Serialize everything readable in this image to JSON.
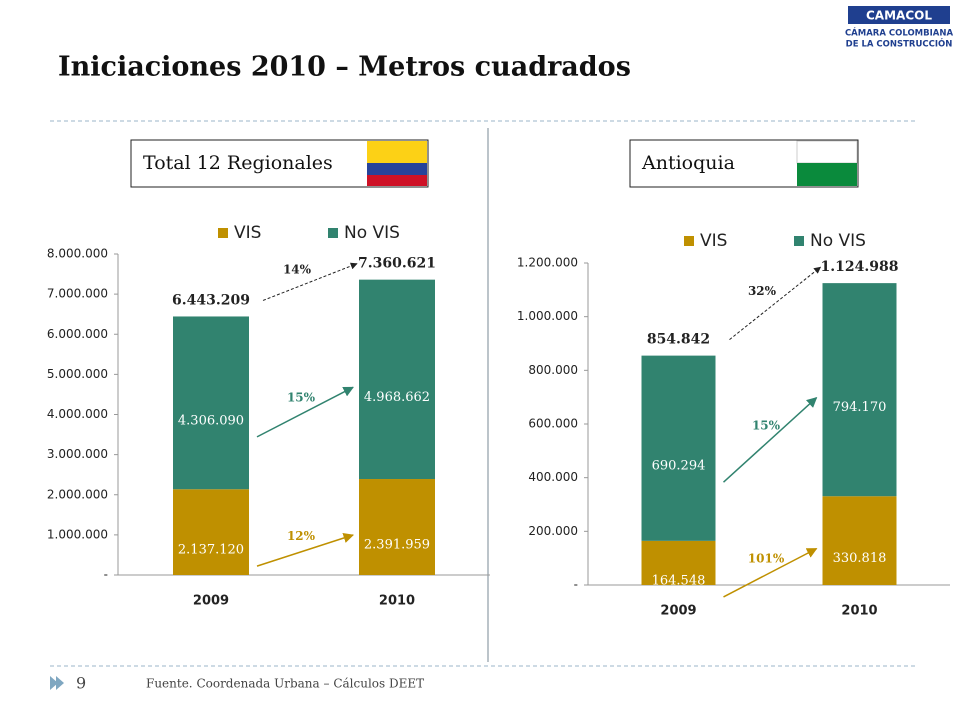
{
  "slide": {
    "title": "Iniciaciones 2010 – Metros cuadrados",
    "page": "9",
    "source": "Fuente. Coordenada Urbana – Cálculos DEET",
    "logo": [
      "CAMACOL",
      "CÁMARA COLOMBIANA",
      "DE LA CONSTRUCCIÓN"
    ]
  },
  "chart_data": [
    {
      "type": "stacked_bar",
      "title": "Total 12 Regionales",
      "categories": [
        "2009",
        "2010"
      ],
      "series": [
        {
          "name": "VIS",
          "color": "#bf9000",
          "values": [
            2137120,
            2391959
          ],
          "value_labels": [
            "2.137.120",
            "2.391.959"
          ],
          "growth_label": "12%"
        },
        {
          "name": "No VIS",
          "color": "#31836f",
          "values": [
            4306090,
            4968662
          ],
          "value_labels": [
            "4.306.090",
            "4.968.662"
          ],
          "growth_label": "15%"
        }
      ],
      "totals": {
        "values": [
          6443209,
          7360621
        ],
        "value_labels": [
          "6.443.209",
          "7.360.621"
        ],
        "growth_label": "14%"
      },
      "ylim": [
        0,
        8000000
      ],
      "yticks": [
        {
          "value": 0,
          "label": "-"
        },
        {
          "value": 1000000,
          "label": "1.000.000"
        },
        {
          "value": 2000000,
          "label": "2.000.000"
        },
        {
          "value": 3000000,
          "label": "3.000.000"
        },
        {
          "value": 4000000,
          "label": "4.000.000"
        },
        {
          "value": 5000000,
          "label": "5.000.000"
        },
        {
          "value": 6000000,
          "label": "6.000.000"
        },
        {
          "value": 7000000,
          "label": "7.000.000"
        },
        {
          "value": 8000000,
          "label": "8.000.000"
        }
      ],
      "legend": "top"
    },
    {
      "type": "stacked_bar",
      "title": "Antioquia",
      "categories": [
        "2009",
        "2010"
      ],
      "series": [
        {
          "name": "VIS",
          "color": "#bf9000",
          "values": [
            164548,
            330818
          ],
          "value_labels": [
            "164.548",
            "330.818"
          ],
          "growth_label": "101%"
        },
        {
          "name": "No VIS",
          "color": "#31836f",
          "values": [
            690294,
            794170
          ],
          "value_labels": [
            "690.294",
            "794.170"
          ],
          "growth_label": "15%"
        }
      ],
      "totals": {
        "values": [
          854842,
          1124988
        ],
        "value_labels": [
          "854.842",
          "1.124.988"
        ],
        "growth_label": "32%"
      },
      "ylim": [
        0,
        1200000
      ],
      "yticks": [
        {
          "value": 0,
          "label": "-"
        },
        {
          "value": 200000,
          "label": "200.000"
        },
        {
          "value": 400000,
          "label": "400.000"
        },
        {
          "value": 600000,
          "label": "600.000"
        },
        {
          "value": 800000,
          "label": "800.000"
        },
        {
          "value": 1000000,
          "label": "1.000.000"
        },
        {
          "value": 1200000,
          "label": "1.200.000"
        }
      ],
      "legend": "top"
    }
  ]
}
